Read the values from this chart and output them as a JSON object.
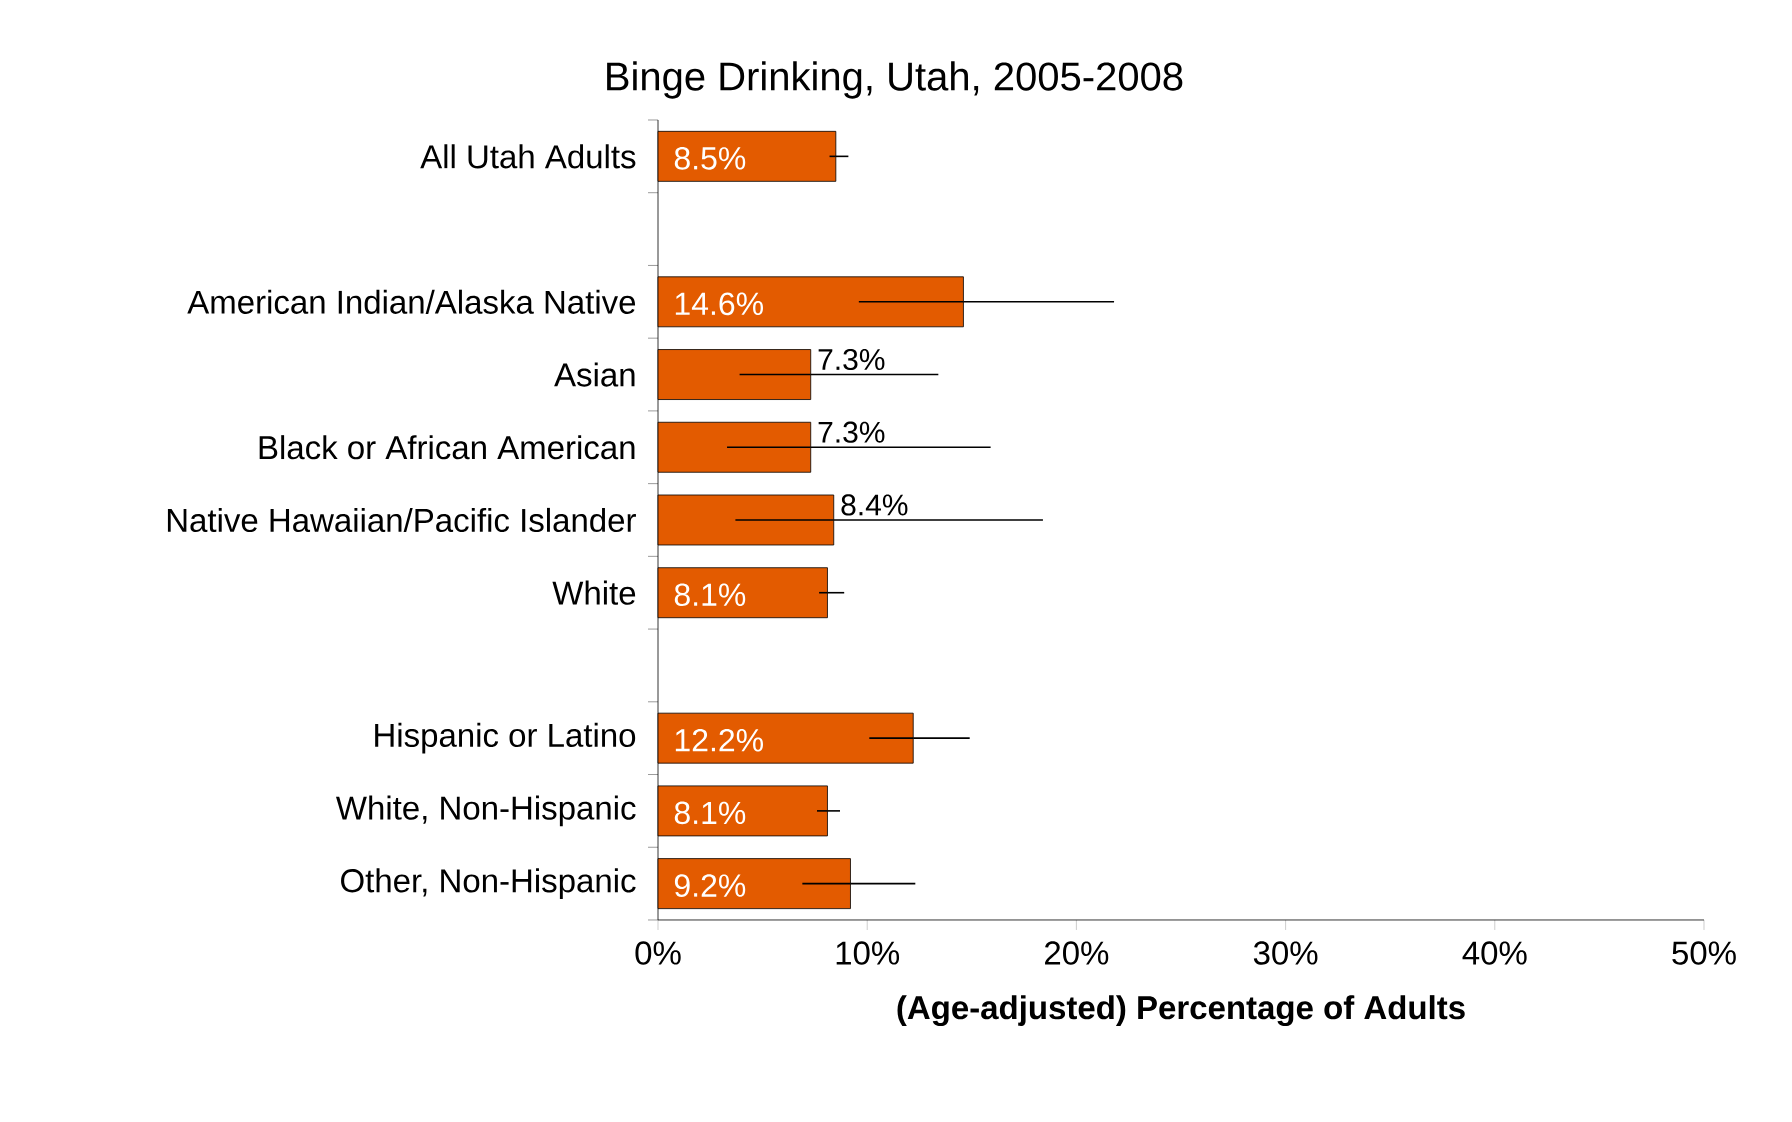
{
  "chart_data": {
    "type": "bar",
    "orientation": "horizontal",
    "title": "Binge Drinking, Utah, 2005-2008",
    "xlabel": "(Age-adjusted) Percentage of Adults",
    "categories": [
      "All Utah Adults",
      null,
      "American Indian/Alaska Native",
      "Asian",
      "Black or African American",
      "Native Hawaiian/Pacific Islander",
      "White",
      null,
      "Hispanic or Latino",
      "White, Non-Hispanic",
      "Other, Non-Hispanic"
    ],
    "values": [
      8.5,
      null,
      14.6,
      7.3,
      7.3,
      8.4,
      8.1,
      null,
      12.2,
      8.1,
      9.2
    ],
    "errors": [
      [
        8.2,
        9.1
      ],
      null,
      [
        9.6,
        21.8
      ],
      [
        3.9,
        13.4
      ],
      [
        3.3,
        15.9
      ],
      [
        3.7,
        18.4
      ],
      [
        7.7,
        8.9
      ],
      null,
      [
        10.1,
        14.9
      ],
      [
        7.6,
        8.7
      ],
      [
        6.9,
        12.3
      ]
    ],
    "value_labels": [
      "8.5%",
      null,
      "14.6%",
      "7.3%",
      "7.3%",
      "8.4%",
      "8.1%",
      null,
      "12.2%",
      "8.1%",
      "9.2%"
    ],
    "color": "#e35b00",
    "xlim": [
      0,
      50
    ],
    "xticks": [
      {
        "value": 0,
        "label": "0%"
      },
      {
        "value": 10,
        "label": "10%"
      },
      {
        "value": 20,
        "label": "20%"
      },
      {
        "value": 30,
        "label": "30%"
      },
      {
        "value": 40,
        "label": "40%"
      },
      {
        "value": 50,
        "label": "50%"
      }
    ],
    "grid": false
  }
}
